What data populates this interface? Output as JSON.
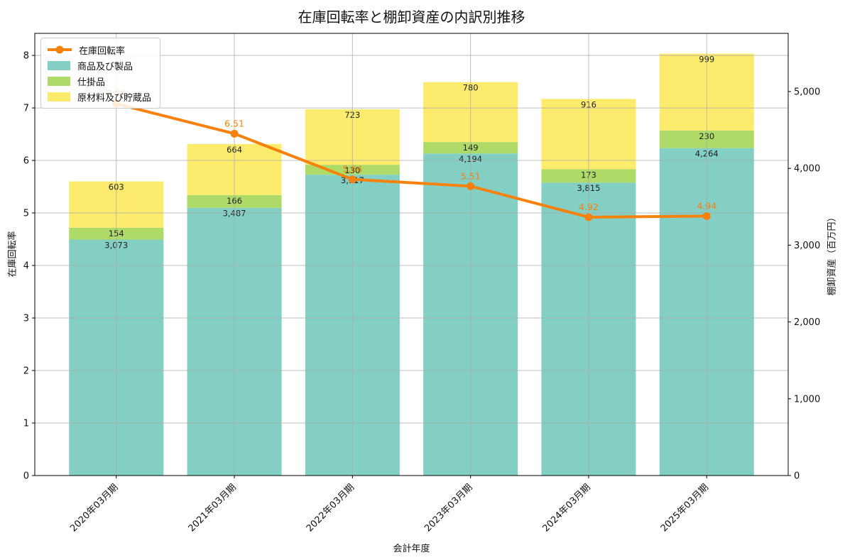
{
  "chart_data": {
    "type": "bar",
    "subtype": "stacked-bar-with-line-overlay",
    "title": "在庫回転率と棚卸資産の内訳別推移",
    "xlabel": "会計年度",
    "ylabel_left": "在庫回転率",
    "ylabel_right": "棚卸資産（百万円）",
    "categories": [
      "2020年03月期",
      "2021年03月期",
      "2022年03月期",
      "2023年03月期",
      "2024年03月期",
      "2025年03月期"
    ],
    "series": [
      {
        "name": "商品及び製品",
        "color": "#83cfc4",
        "values": [
          3073,
          3487,
          3917,
          4194,
          3815,
          4264
        ]
      },
      {
        "name": "仕掛品",
        "color": "#aeda67",
        "values": [
          154,
          166,
          130,
          149,
          173,
          230
        ]
      },
      {
        "name": "原材料及び貯蔵品",
        "color": "#fdeb6e",
        "values": [
          603,
          664,
          723,
          780,
          916,
          999
        ]
      }
    ],
    "line_series": {
      "name": "在庫回転率",
      "color": "#f5820e",
      "axis": "left",
      "values": [
        7.08,
        6.51,
        5.64,
        5.51,
        4.92,
        4.94
      ]
    },
    "left_axis": {
      "min": 0,
      "max": 8.42,
      "ticks": [
        0,
        1,
        2,
        3,
        4,
        5,
        6,
        7,
        8
      ]
    },
    "right_axis": {
      "min": 0,
      "max": 5758,
      "ticks": [
        0,
        1000,
        2000,
        3000,
        4000,
        5000
      ]
    },
    "grid": true,
    "legend": {
      "position": "upper-left",
      "entries": [
        "在庫回転率",
        "商品及び製品",
        "仕掛品",
        "原材料及び貯蔵品"
      ]
    }
  },
  "colors": {
    "grid": "#aaaaaa",
    "axis": "#000000",
    "bar_label": "#222222",
    "background": "#ffffff"
  }
}
